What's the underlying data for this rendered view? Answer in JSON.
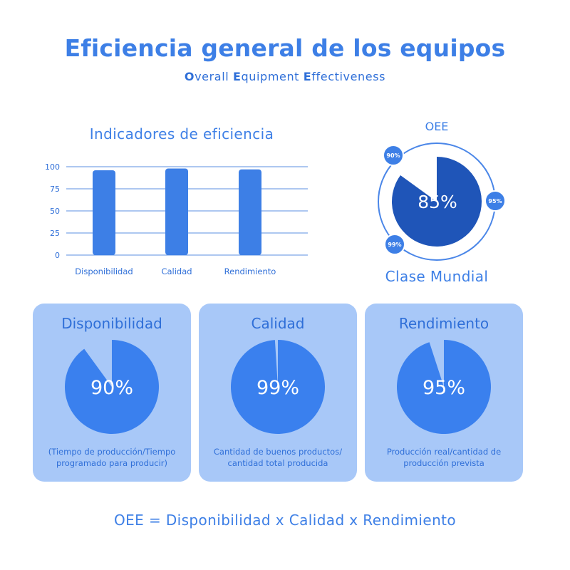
{
  "header": {
    "title": "Eficiencia general de los equipos",
    "subtitle_parts": [
      {
        "text": "O",
        "bold": true
      },
      {
        "text": "verall ",
        "bold": false
      },
      {
        "text": "E",
        "bold": true
      },
      {
        "text": "quipment ",
        "bold": false
      },
      {
        "text": "E",
        "bold": true
      },
      {
        "text": "ffectiveness",
        "bold": false
      }
    ]
  },
  "chart_data": [
    {
      "type": "bar",
      "title": "Indicadores de eficiencia",
      "categories": [
        "Disponibilidad",
        "Calidad",
        "Rendimiento"
      ],
      "values": [
        96,
        98,
        97
      ],
      "yticks": [
        "0",
        "25",
        "50",
        "75",
        "100"
      ],
      "ylim": [
        0,
        100
      ],
      "grid": true,
      "color": "#3d7fe6"
    },
    {
      "type": "pie",
      "title": "OEE",
      "value": 85,
      "value_label": "85%",
      "color": "#1f55b8",
      "badges": [
        "90%",
        "95%",
        "99%"
      ],
      "caption": "Clase Mundial"
    }
  ],
  "cards": [
    {
      "title": "Disponibilidad",
      "value": 90,
      "value_label": "90%",
      "description": "(Tiempo de producción/Tiempo programado para producir)"
    },
    {
      "title": "Calidad",
      "value": 99,
      "value_label": "99%",
      "description": "Cantidad de buenos productos/ cantidad total producida"
    },
    {
      "title": "Rendimiento",
      "value": 95,
      "value_label": "95%",
      "description": "Producción real/cantidad de producción prevista"
    }
  ],
  "colors": {
    "accent": "#3d7fe6",
    "dark_accent": "#1f55b8",
    "card_bg": "#a8c8f8",
    "pie_fill": "#3a80ee"
  },
  "footer": {
    "formula": "OEE = Disponibilidad x Calidad x Rendimiento"
  }
}
